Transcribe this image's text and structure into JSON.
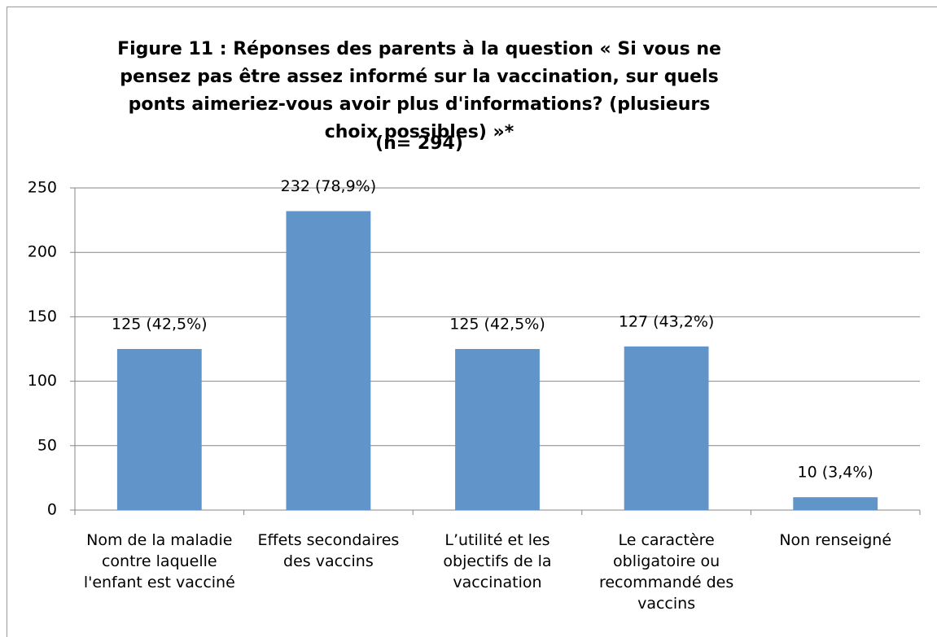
{
  "chart_data": {
    "type": "bar",
    "title": "Figure 11 : Réponses des parents à la question « Si vous ne pensez pas être assez informé sur la vaccination, sur quels ponts aimeriez-vous avoir plus d'informations? (plusieurs choix possibles) »*",
    "subtitle": "(n= 294)",
    "categories": [
      "Nom de la maladie contre laquelle l'enfant est vacciné",
      "Effets secondaires des vaccins",
      "L’utilité et les objectifs de la vaccination",
      "Le caractère obligatoire ou recommandé des vaccins",
      "Non renseigné"
    ],
    "values": [
      125,
      232,
      125,
      127,
      10
    ],
    "value_labels": [
      "125 (42,5%)",
      "232 (78,9%)",
      "125 (42,5%)",
      "127 (43,2%)",
      "10 (3,4%)"
    ],
    "color": "#6194c9",
    "ylim": [
      0,
      250
    ],
    "yticks": [
      0,
      50,
      100,
      150,
      200,
      250
    ],
    "grid": true
  }
}
